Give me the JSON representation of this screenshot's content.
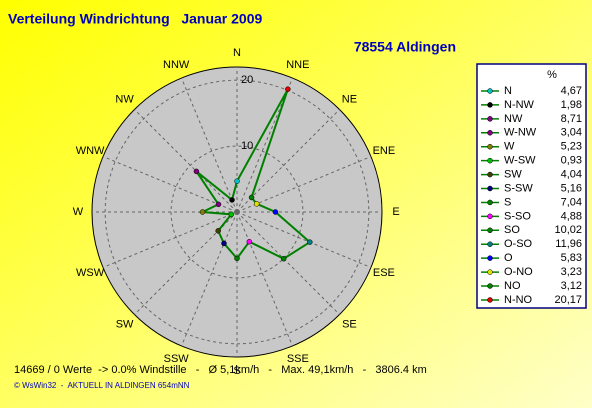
{
  "chart_data": {
    "type": "radar",
    "title": "Verteilung Windrichtung   Januar 2009",
    "subtitle": "78554 Aldingen",
    "directions": [
      "N",
      "NNE",
      "NE",
      "ENE",
      "E",
      "ESE",
      "SE",
      "SSE",
      "S",
      "SSW",
      "SW",
      "WSW",
      "W",
      "WNW",
      "NW",
      "NNW"
    ],
    "legend_title": "%",
    "categories": [
      "N",
      "N-NW",
      "NW",
      "W-NW",
      "W",
      "W-SW",
      "SW",
      "S-SW",
      "S",
      "S-SO",
      "SO",
      "O-SO",
      "O",
      "O-NO",
      "NO",
      "N-NO"
    ],
    "values": [
      4.67,
      1.98,
      8.71,
      3.04,
      5.23,
      0.93,
      4.04,
      5.16,
      7.04,
      4.88,
      10.02,
      11.96,
      5.83,
      3.23,
      3.12,
      20.17
    ],
    "value_labels": [
      "4,67",
      "1,98",
      "8,71",
      "3,04",
      "5,23",
      "0,93",
      "4,04",
      "5,16",
      "7,04",
      "4,88",
      "10,02",
      "11,96",
      "5,83",
      "3,23",
      "3,12",
      "20,17"
    ],
    "colors": [
      "#00c0c0",
      "#000000",
      "#800080",
      "#800080",
      "#808000",
      "#00c000",
      "#404000",
      "#000080",
      "#008000",
      "#ff00ff",
      "#008000",
      "#008080",
      "#0000ff",
      "#e0e000",
      "#008000",
      "#e00000"
    ],
    "line_color": "#008000",
    "rlim": [
      0,
      22
    ],
    "rticks": [
      10,
      20
    ],
    "footer": "14669 / 0 Werte  -> 0.0% Windstille   -   Ø 5,1km/h   -   Max. 49,1km/h   -   3806.4 km",
    "credit": "© WsWin32  -  AKTUELL IN ALDINGEN 654mNN"
  }
}
